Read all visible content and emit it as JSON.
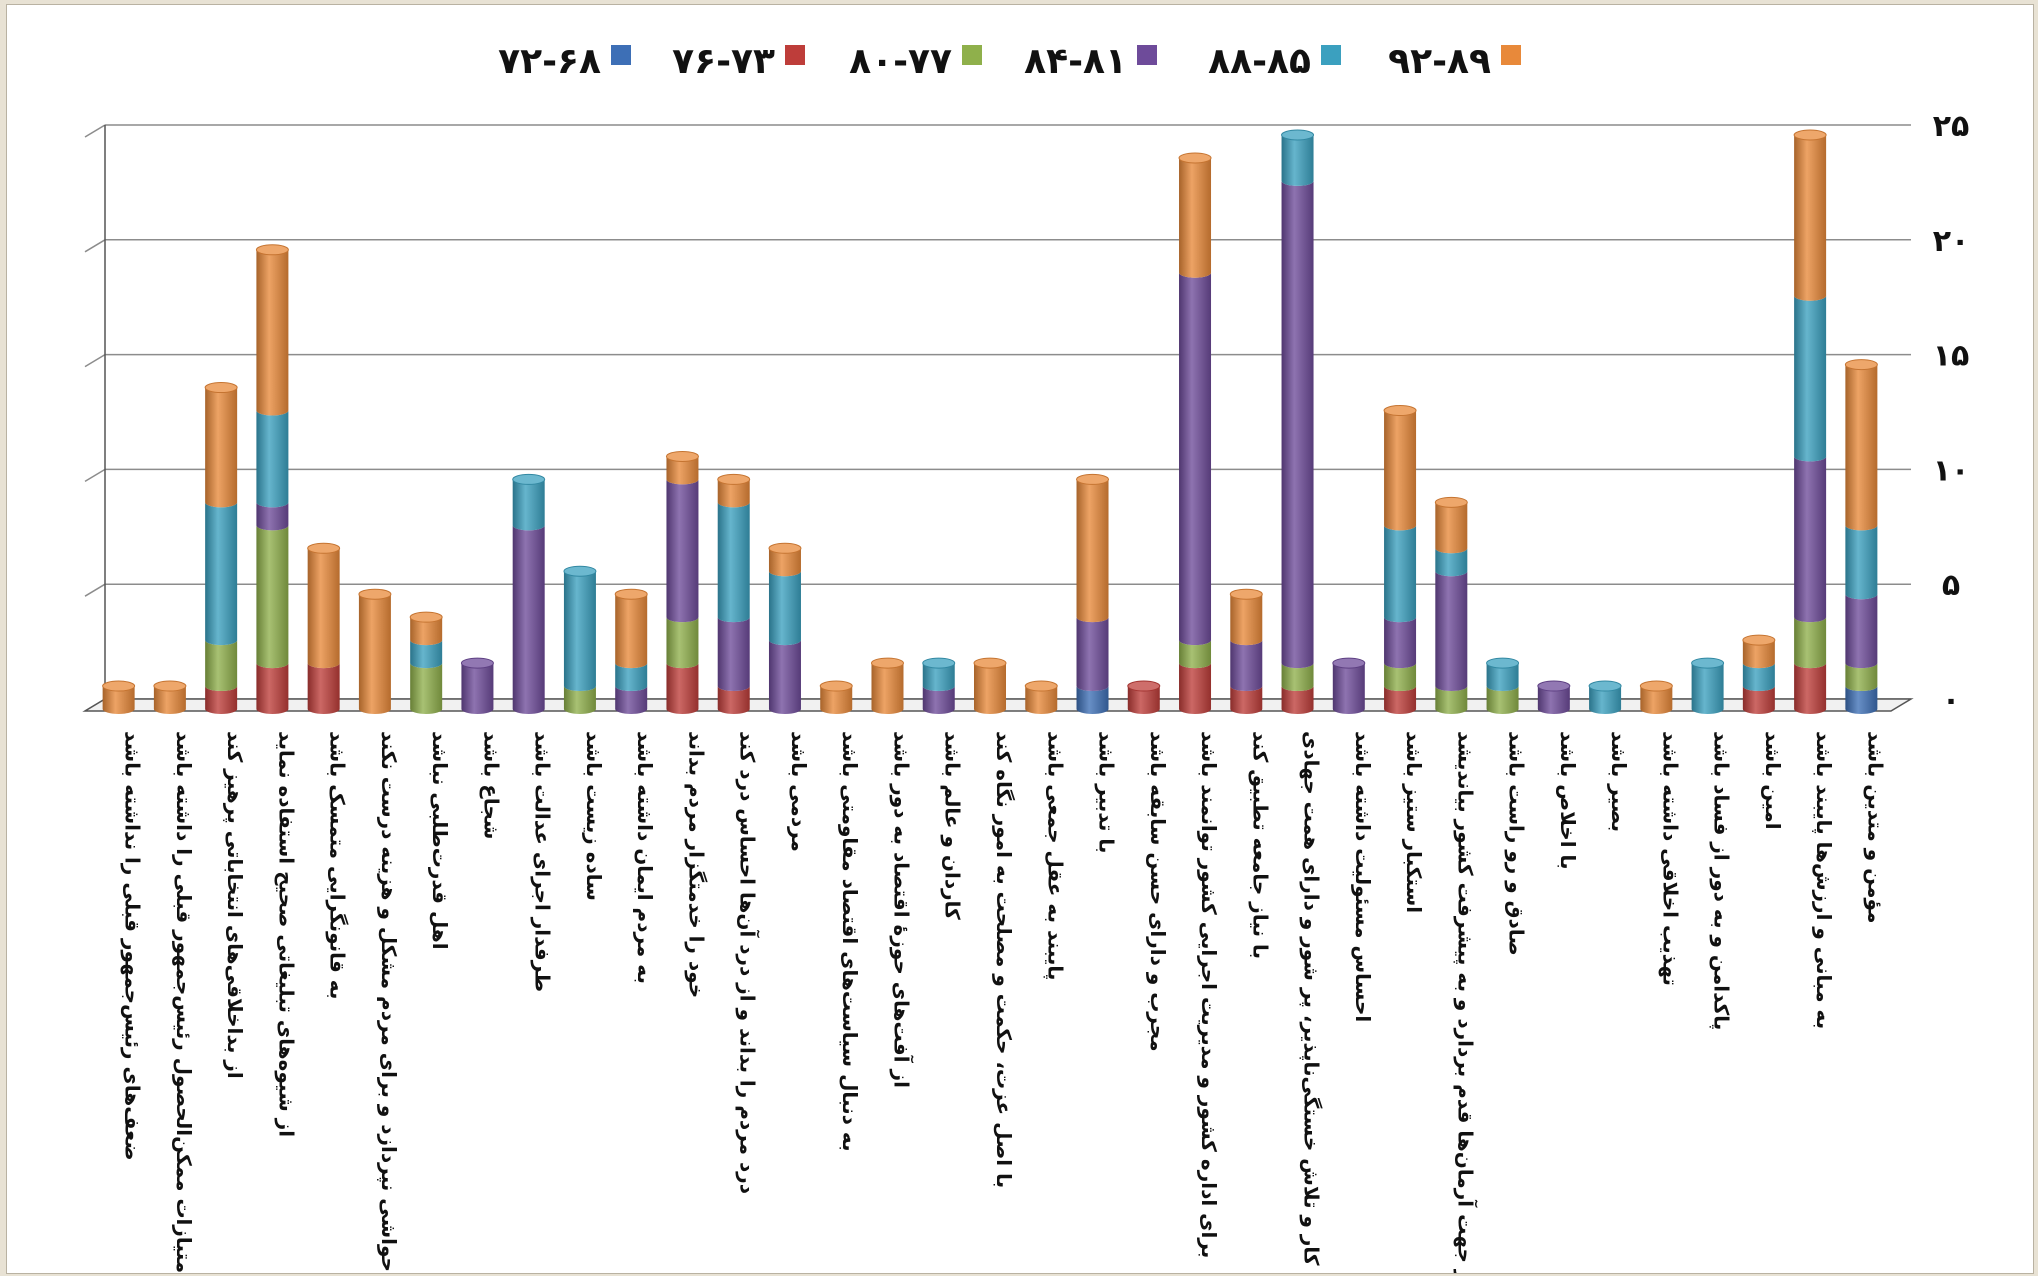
{
  "chart_data": {
    "type": "bar",
    "stacked": true,
    "three_d": true,
    "title": "",
    "xlabel": "",
    "ylabel": "",
    "ylim": [
      0,
      25
    ],
    "y_ticks": [
      {
        "value": 0,
        "label": "۰"
      },
      {
        "value": 5,
        "label": "۵"
      },
      {
        "value": 10,
        "label": "۱۰"
      },
      {
        "value": 15,
        "label": "۱۵"
      },
      {
        "value": 20,
        "label": "۲۰"
      },
      {
        "value": 25,
        "label": "۲۵"
      }
    ],
    "grid": true,
    "legend_position": "top",
    "colors": {
      "background": "#ffffff",
      "grid": "#8c8c8c",
      "axis": "#555555"
    },
    "legend": [
      {
        "name": "۷۲-۶۸",
        "color": "#3d6fb6"
      },
      {
        "name": "۷۶-۷۳",
        "color": "#be3d3a"
      },
      {
        "name": "۸۰-۷۷",
        "color": "#8fb04b"
      },
      {
        "name": "۸۴-۸۱",
        "color": "#6e4b9a"
      },
      {
        "name": "۸۸-۸۵",
        "color": "#3ba0bf"
      },
      {
        "name": "۹۲-۸۹",
        "color": "#e8893a"
      }
    ],
    "categories": [
      "ضعف‌های رئیس‌جمهور قبلی را نداشته باشد",
      "امتیازات ممکن‌الحصول رئیس‌جمهور قبلی را داشته باشد",
      "از بداخلاقی‌های انتخاباتی پرهیز کند",
      "از شیوه‌های تبلیغاتی صحیح استفاده نماید",
      "به قانونگرایی متمسک باشد",
      "به حواشی نپردازد و برای مردم مشکل و هزینه درست نکند",
      "اهل قدرت‌طلبی نباشد",
      "شجاع باشد",
      "طرفدار اجرای عدالت باشد",
      "ساده زیست باشد",
      "به مردم ایمان داشته باشد",
      "خود را خدمتگزار مردم بداند",
      "درد مردم را بداند و از درد آن‌ها احساس درد کند",
      "مردمی باشد",
      "به دنبال سیاست‌های اقتصاد مقاومتی باشد",
      "از آفت‌های حوزهٔ اقتصاد به دور باشد",
      "کاردان و عالم باشد",
      "با اصل عزت، حکمت و مصلحت به امور نگاه کند",
      "پایبند به عقل جمعی باشد",
      "با تدبیر باشد",
      "مجرب و دارای حسن سابقه باشد",
      "برای اداره کشور و مدیریت اجرایی کشور توانمند باشد",
      "با نیاز جامعه تطبیق کند",
      "اهل کار و تلاش خستگی‌ناپذیر، پر شور و دارای همت جهادی…",
      "احساس مسئولیت داشته باشد",
      "استکبار ستیز باشد",
      "در جهت آرمان‌ها قدم بردارد و به پیشرفت کشور بیاندیشد",
      "صادق و رو راست باشد",
      "با اخلاص باشد",
      "بصیر باشد",
      "تهذیب اخلاقی داشته باشد",
      "پاکدامن و به دور از فساد باشد",
      "امین باشد",
      "به مبانی و ارزش‌ها پایبند باشد",
      "مؤمن و متدین باشد"
    ],
    "series": [
      {
        "name": "۷۲-۶۸",
        "values": [
          0,
          0,
          0,
          0,
          0,
          0,
          0,
          0,
          0,
          0,
          0,
          0,
          0,
          0,
          0,
          0,
          0,
          0,
          0,
          1,
          0,
          0,
          0,
          0,
          0,
          0,
          0,
          0,
          0,
          0,
          0,
          0,
          0,
          0,
          1
        ]
      },
      {
        "name": "۷۶-۷۳",
        "values": [
          0,
          0,
          1,
          2,
          2,
          0,
          0,
          0,
          0,
          0,
          0,
          2,
          1,
          0,
          0,
          0,
          0,
          0,
          0,
          0,
          1,
          2,
          1,
          1,
          0,
          1,
          0,
          0,
          0,
          0,
          0,
          0,
          1,
          2,
          0
        ]
      },
      {
        "name": "۸۰-۷۷",
        "values": [
          0,
          0,
          2,
          6,
          0,
          0,
          2,
          0,
          0,
          1,
          0,
          2,
          0,
          0,
          0,
          0,
          0,
          0,
          0,
          0,
          0,
          1,
          0,
          1,
          0,
          1,
          1,
          1,
          0,
          0,
          0,
          0,
          0,
          2,
          1
        ]
      },
      {
        "name": "۸۴-۸۱",
        "values": [
          0,
          0,
          0,
          1,
          0,
          0,
          0,
          2,
          8,
          0,
          1,
          6,
          3,
          3,
          0,
          0,
          1,
          0,
          0,
          3,
          0,
          16,
          2,
          21,
          2,
          2,
          5,
          0,
          1,
          0,
          0,
          0,
          0,
          7,
          3
        ]
      },
      {
        "name": "۸۸-۸۵",
        "values": [
          0,
          0,
          6,
          4,
          0,
          0,
          1,
          0,
          2,
          5,
          1,
          0,
          5,
          3,
          0,
          0,
          1,
          0,
          0,
          0,
          0,
          0,
          0,
          2,
          0,
          4,
          1,
          1,
          0,
          1,
          0,
          2,
          1,
          7,
          3
        ]
      },
      {
        "name": "۹۲-۸۹",
        "values": [
          1,
          1,
          5,
          7,
          5,
          5,
          1,
          0,
          0,
          0,
          3,
          1,
          1,
          1,
          1,
          2,
          0,
          2,
          1,
          6,
          0,
          5,
          2,
          0,
          0,
          5,
          2,
          0,
          0,
          0,
          1,
          0,
          1,
          7,
          7
        ]
      }
    ]
  }
}
